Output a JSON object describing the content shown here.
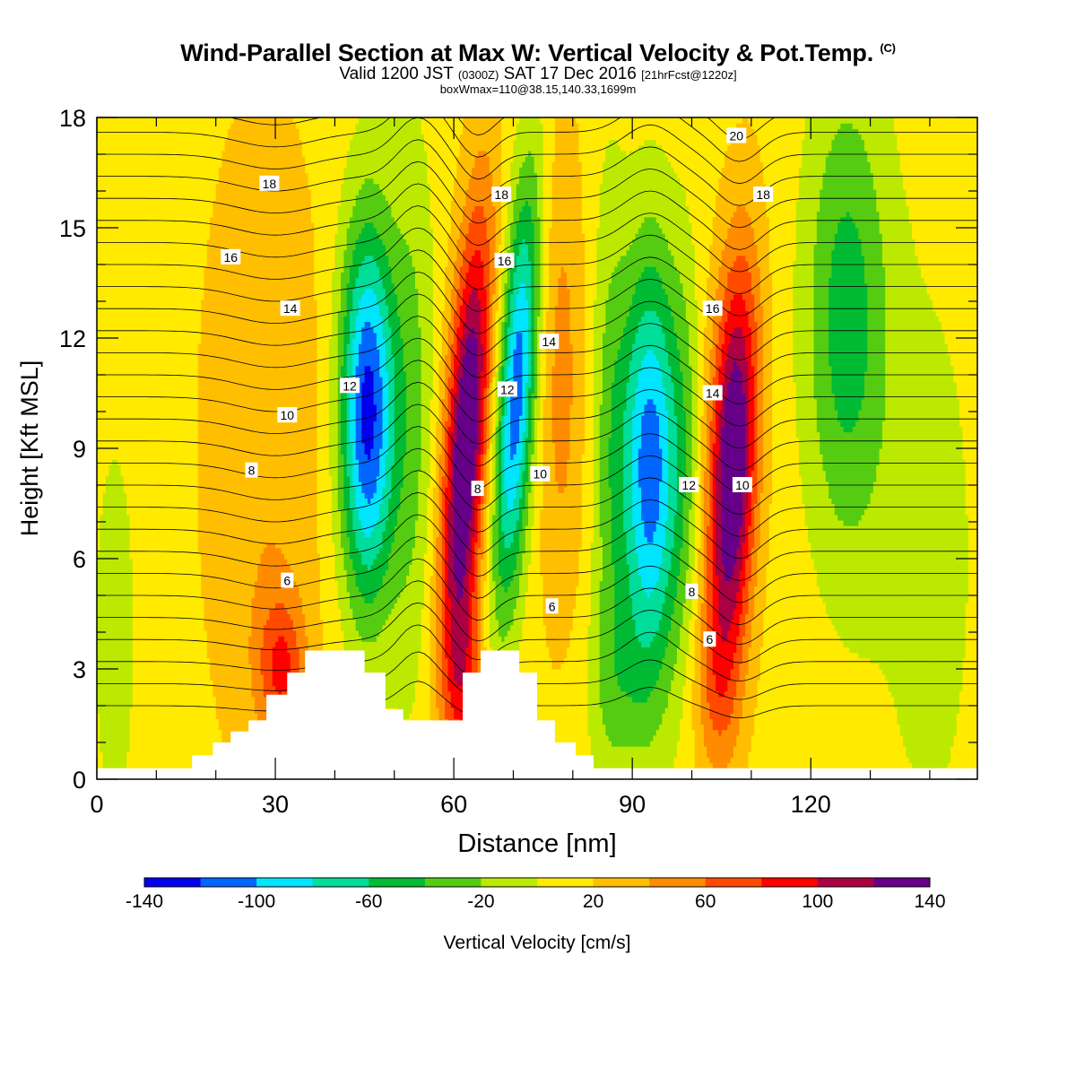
{
  "header": {
    "title": "Wind-Parallel Section at Max W: Vertical Velocity & Pot.Temp.",
    "copyright": "(C)",
    "subtitle_a": "Valid 1200 JST",
    "subtitle_b": "(0300Z)",
    "subtitle_c": "SAT 17 Dec 2016",
    "subtitle_d": "[21hrFcst@1220z]",
    "info_line": "boxWmax=110@38.15,140.33,1699m"
  },
  "chart_data": {
    "type": "heatmap",
    "title": "Wind-Parallel Section at Max W: Vertical Velocity & Pot.Temp.",
    "xlabel": "Distance [nm]",
    "ylabel": "Height [Kft MSL]",
    "xlim": [
      0,
      148
    ],
    "ylim": [
      0,
      18
    ],
    "x_ticks": [
      0,
      30,
      60,
      90,
      120
    ],
    "y_ticks": [
      0,
      3,
      6,
      9,
      12,
      15,
      18
    ],
    "colorbar": {
      "label": "Vertical Velocity [cm/s]",
      "tick_labels": [
        -140,
        -100,
        -60,
        -20,
        20,
        60,
        100,
        140
      ],
      "bins": [
        -140,
        -120,
        -100,
        -80,
        -60,
        -40,
        -20,
        0,
        20,
        40,
        60,
        80,
        100,
        120,
        140
      ],
      "colors": [
        "#0000ee",
        "#0066ff",
        "#00e5ff",
        "#00dd99",
        "#00bb33",
        "#55cc11",
        "#bbea00",
        "#ffea00",
        "#ffbf00",
        "#ff8c00",
        "#ff4a00",
        "#ff0000",
        "#aa0044",
        "#660088"
      ]
    },
    "vertical_velocity_features": [
      {
        "x": 45,
        "z": 10,
        "w": -130
      },
      {
        "x": 62,
        "z": 9,
        "w": 120
      },
      {
        "x": 70,
        "z": 10,
        "w": -115
      },
      {
        "x": 93,
        "z": 8.5,
        "w": -120
      },
      {
        "x": 107,
        "z": 8.5,
        "w": 120
      },
      {
        "x": 125,
        "z": 12,
        "w": -40
      },
      {
        "x": 28,
        "z": 8,
        "w": 40
      }
    ],
    "theta_contour_labels": [
      {
        "text": "18",
        "x": 29,
        "z": 16.2
      },
      {
        "text": "16",
        "x": 22.5,
        "z": 14.2
      },
      {
        "text": "14",
        "x": 32.5,
        "z": 12.8
      },
      {
        "text": "12",
        "x": 42.5,
        "z": 10.7
      },
      {
        "text": "10",
        "x": 32,
        "z": 9.9
      },
      {
        "text": "8",
        "x": 26,
        "z": 8.4
      },
      {
        "text": "6",
        "x": 32,
        "z": 5.4
      },
      {
        "text": "18",
        "x": 68,
        "z": 15.9
      },
      {
        "text": "16",
        "x": 68.5,
        "z": 14.1
      },
      {
        "text": "14",
        "x": 76,
        "z": 11.9
      },
      {
        "text": "12",
        "x": 69,
        "z": 10.6
      },
      {
        "text": "10",
        "x": 74.5,
        "z": 8.3
      },
      {
        "text": "8",
        "x": 64,
        "z": 7.9
      },
      {
        "text": "6",
        "x": 76.5,
        "z": 4.7
      },
      {
        "text": "20",
        "x": 107.5,
        "z": 17.5
      },
      {
        "text": "18",
        "x": 112,
        "z": 15.9
      },
      {
        "text": "16",
        "x": 103.5,
        "z": 12.8
      },
      {
        "text": "14",
        "x": 103.5,
        "z": 10.5
      },
      {
        "text": "12",
        "x": 99.5,
        "z": 8.0
      },
      {
        "text": "10",
        "x": 108.5,
        "z": 8.0
      },
      {
        "text": "8",
        "x": 100,
        "z": 5.1
      },
      {
        "text": "6",
        "x": 103,
        "z": 3.8
      }
    ],
    "terrain_profile_kft": [
      {
        "x": 0,
        "z": 0.3
      },
      {
        "x": 16,
        "z": 0.3
      },
      {
        "x": 16,
        "z": 0.65
      },
      {
        "x": 19.5,
        "z": 0.65
      },
      {
        "x": 19.5,
        "z": 1.0
      },
      {
        "x": 22.5,
        "z": 1.0
      },
      {
        "x": 22.5,
        "z": 1.3
      },
      {
        "x": 25.5,
        "z": 1.3
      },
      {
        "x": 25.5,
        "z": 1.6
      },
      {
        "x": 28.5,
        "z": 1.6
      },
      {
        "x": 28.5,
        "z": 2.3
      },
      {
        "x": 32,
        "z": 2.3
      },
      {
        "x": 32,
        "z": 2.9
      },
      {
        "x": 35,
        "z": 2.9
      },
      {
        "x": 35,
        "z": 3.5
      },
      {
        "x": 45,
        "z": 3.5
      },
      {
        "x": 45,
        "z": 2.9
      },
      {
        "x": 48.5,
        "z": 2.9
      },
      {
        "x": 48.5,
        "z": 1.9
      },
      {
        "x": 51.5,
        "z": 1.9
      },
      {
        "x": 51.5,
        "z": 1.6
      },
      {
        "x": 61.5,
        "z": 1.6
      },
      {
        "x": 61.5,
        "z": 2.9
      },
      {
        "x": 64.5,
        "z": 2.9
      },
      {
        "x": 64.5,
        "z": 3.5
      },
      {
        "x": 71,
        "z": 3.5
      },
      {
        "x": 71,
        "z": 2.9
      },
      {
        "x": 74,
        "z": 2.9
      },
      {
        "x": 74,
        "z": 1.6
      },
      {
        "x": 77,
        "z": 1.6
      },
      {
        "x": 77,
        "z": 1.0
      },
      {
        "x": 80.5,
        "z": 1.0
      },
      {
        "x": 80.5,
        "z": 0.65
      },
      {
        "x": 83.5,
        "z": 0.65
      },
      {
        "x": 83.5,
        "z": 0.3
      },
      {
        "x": 148,
        "z": 0.3
      }
    ]
  }
}
